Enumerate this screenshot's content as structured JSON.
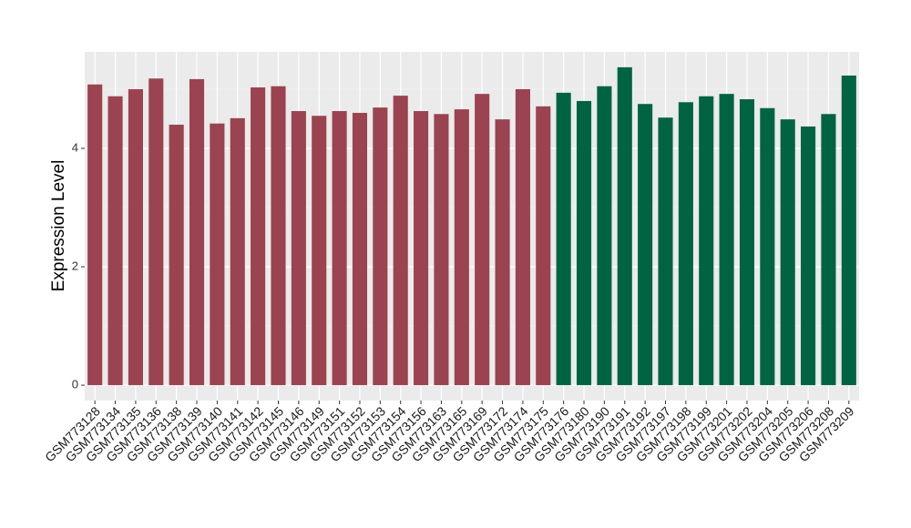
{
  "chart_data": {
    "type": "bar",
    "y_label": "Expression Level",
    "categories": [
      "GSM773128",
      "GSM773134",
      "GSM773135",
      "GSM773136",
      "GSM773138",
      "GSM773139",
      "GSM773140",
      "GSM773141",
      "GSM773142",
      "GSM773145",
      "GSM773146",
      "GSM773149",
      "GSM773151",
      "GSM773152",
      "GSM773153",
      "GSM773154",
      "GSM773156",
      "GSM773163",
      "GSM773165",
      "GSM773169",
      "GSM773172",
      "GSM773174",
      "GSM773175",
      "GSM773176",
      "GSM773180",
      "GSM773190",
      "GSM773191",
      "GSM773192",
      "GSM773197",
      "GSM773198",
      "GSM773199",
      "GSM773201",
      "GSM773202",
      "GSM773204",
      "GSM773205",
      "GSM773206",
      "GSM773208",
      "GSM773209"
    ],
    "values": [
      5.08,
      4.88,
      5.0,
      5.18,
      4.4,
      5.17,
      4.42,
      4.51,
      5.03,
      5.05,
      4.63,
      4.55,
      4.63,
      4.6,
      4.69,
      4.89,
      4.63,
      4.58,
      4.66,
      4.92,
      4.49,
      5.0,
      4.71,
      4.94,
      4.8,
      5.05,
      5.37,
      4.75,
      4.52,
      4.78,
      4.88,
      4.92,
      4.83,
      4.68,
      4.49,
      4.37,
      4.58,
      5.23
    ],
    "colors": [
      "#9b4350",
      "#9b4350",
      "#9b4350",
      "#9b4350",
      "#9b4350",
      "#9b4350",
      "#9b4350",
      "#9b4350",
      "#9b4350",
      "#9b4350",
      "#9b4350",
      "#9b4350",
      "#9b4350",
      "#9b4350",
      "#9b4350",
      "#9b4350",
      "#9b4350",
      "#9b4350",
      "#9b4350",
      "#9b4350",
      "#9b4350",
      "#9b4350",
      "#9b4350",
      "#006442",
      "#006442",
      "#006442",
      "#006442",
      "#006442",
      "#006442",
      "#006442",
      "#006442",
      "#006442",
      "#006442",
      "#006442",
      "#006442",
      "#006442",
      "#006442",
      "#006442"
    ],
    "ylim": [
      -0.26,
      5.63
    ],
    "yticks": [
      0,
      2,
      4
    ],
    "grid": true
  }
}
